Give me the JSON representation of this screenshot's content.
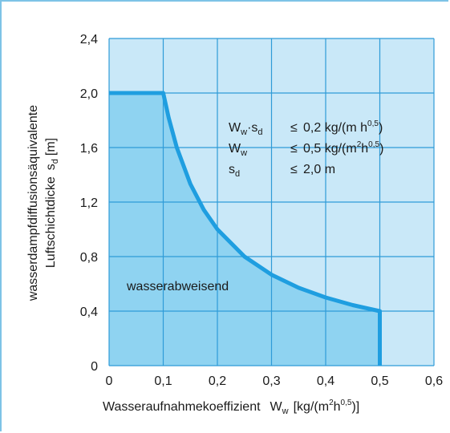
{
  "chart_data": {
    "type": "area",
    "xlabel": {
      "text": "Wasseraufnahmekoeffizient",
      "symbol": "W",
      "symbol_sub": "w",
      "unit_pre": "[kg/(m",
      "unit_sup1": "2",
      "unit_mid": "h",
      "unit_sup2": "0,5",
      "unit_post": ")]"
    },
    "ylabel": {
      "line1": "wasserdampfdiffusionsäquivalente",
      "line2": "Luftschichtdicke",
      "symbol": "s",
      "symbol_sub": "d",
      "unit": "[m]"
    },
    "xlim": [
      0,
      0.6
    ],
    "ylim": [
      0,
      2.4
    ],
    "x_ticks": [
      0,
      0.1,
      0.2,
      0.3,
      0.4,
      0.5,
      0.6
    ],
    "x_tick_labels": [
      "0",
      "0,1",
      "0,2",
      "0,3",
      "0,4",
      "0,5",
      "0,6"
    ],
    "y_ticks": [
      0,
      0.4,
      0.8,
      1.2,
      1.6,
      2.0,
      2.4
    ],
    "y_tick_labels": [
      "0",
      "0,4",
      "0,8",
      "1,2",
      "1,6",
      "2,0",
      "2,4"
    ],
    "grid": true,
    "region_label": "wasserabweisend",
    "boundary": {
      "x": [
        0,
        0.1,
        0.11,
        0.125,
        0.15,
        0.175,
        0.2,
        0.25,
        0.3,
        0.35,
        0.4,
        0.45,
        0.5,
        0.5
      ],
      "y": [
        2.0,
        2.0,
        1.818,
        1.6,
        1.333,
        1.143,
        1.0,
        0.8,
        0.667,
        0.571,
        0.5,
        0.444,
        0.4,
        0
      ]
    },
    "conditions": [
      {
        "lhs": "W",
        "lhs_sub": "w",
        "mid": "·s",
        "mid_sub": "d",
        "op": "≤",
        "value": "0,2 kg/(m h",
        "sup": "0,5",
        "tail": ")"
      },
      {
        "lhs": "W",
        "lhs_sub": "w",
        "mid": "",
        "mid_sub": "",
        "op": "≤",
        "value": "0,5 kg/(m",
        "sup2": "2",
        "value2": "h",
        "sup": "0,5",
        "tail": ")"
      },
      {
        "lhs": "s",
        "lhs_sub": "d",
        "mid": "",
        "mid_sub": "",
        "op": "≤",
        "value": "2,0 m",
        "sup": "",
        "tail": ""
      }
    ],
    "colors": {
      "background": "#c9e8f8",
      "region": "#8fd3f1",
      "boundary": "#1f9ee0",
      "grid": "#2f9bd8",
      "frame": "#7ec3e6"
    }
  }
}
